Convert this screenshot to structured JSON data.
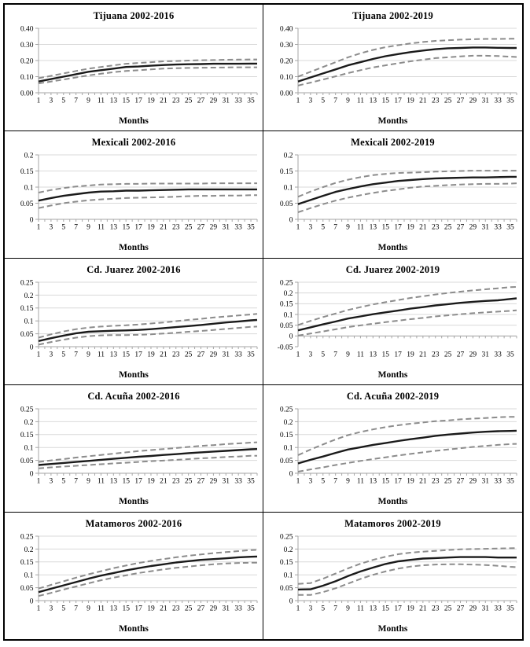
{
  "figure": {
    "background": "#ffffff",
    "frame_border_color": "#000000",
    "gridline_color": "#d9d9d9",
    "axis_color": "#a6a6a6",
    "estimate_color": "#1a1a1a",
    "band_color": "#8c8c8c"
  },
  "axis_shared": {
    "x_months": [
      1,
      3,
      5,
      7,
      9,
      11,
      13,
      15,
      17,
      19,
      21,
      23,
      25,
      27,
      29,
      31,
      33,
      35,
      36
    ],
    "x_labeled": [
      1,
      3,
      5,
      7,
      9,
      11,
      13,
      15,
      17,
      19,
      21,
      23,
      25,
      27,
      29,
      31,
      33,
      35
    ]
  },
  "chart_data": [
    {
      "type": "line",
      "title": "Tijuana 2002-2016",
      "xlabel": "Months",
      "ylim": [
        0,
        0.4
      ],
      "yticks": [
        0,
        0.1,
        0.2,
        0.3,
        0.4
      ],
      "ytick_labels": [
        "0.00",
        "0.10",
        "0.20",
        "0.30",
        "0.40"
      ],
      "series": [
        {
          "name": "estimate",
          "style": "solid",
          "color": "#1a1a1a",
          "values": [
            0.07,
            0.085,
            0.1,
            0.115,
            0.13,
            0.14,
            0.15,
            0.16,
            0.163,
            0.168,
            0.172,
            0.175,
            0.177,
            0.178,
            0.18,
            0.18,
            0.18,
            0.181,
            0.181
          ]
        },
        {
          "name": "upper-bound",
          "style": "dashed",
          "color": "#8c8c8c",
          "values": [
            0.09,
            0.105,
            0.12,
            0.135,
            0.15,
            0.16,
            0.17,
            0.18,
            0.185,
            0.19,
            0.195,
            0.197,
            0.2,
            0.202,
            0.203,
            0.205,
            0.206,
            0.207,
            0.207
          ]
        },
        {
          "name": "lower-bound",
          "style": "dashed",
          "color": "#8c8c8c",
          "values": [
            0.058,
            0.07,
            0.082,
            0.095,
            0.108,
            0.118,
            0.128,
            0.135,
            0.14,
            0.145,
            0.15,
            0.152,
            0.154,
            0.155,
            0.156,
            0.157,
            0.158,
            0.158,
            0.158
          ]
        }
      ]
    },
    {
      "type": "line",
      "title": "Tijuana 2002-2019",
      "xlabel": "Months",
      "ylim": [
        0,
        0.4
      ],
      "yticks": [
        0,
        0.1,
        0.2,
        0.3,
        0.4
      ],
      "ytick_labels": [
        "0.00",
        "0.10",
        "0.20",
        "0.30",
        "0.40"
      ],
      "series": [
        {
          "name": "estimate",
          "style": "solid",
          "color": "#1a1a1a",
          "values": [
            0.07,
            0.095,
            0.12,
            0.145,
            0.17,
            0.19,
            0.21,
            0.227,
            0.24,
            0.252,
            0.262,
            0.27,
            0.276,
            0.278,
            0.281,
            0.281,
            0.279,
            0.278,
            0.278
          ]
        },
        {
          "name": "upper-bound",
          "style": "dashed",
          "color": "#8c8c8c",
          "values": [
            0.1,
            0.13,
            0.16,
            0.19,
            0.22,
            0.245,
            0.266,
            0.283,
            0.295,
            0.306,
            0.315,
            0.322,
            0.326,
            0.33,
            0.332,
            0.334,
            0.334,
            0.335,
            0.335
          ]
        },
        {
          "name": "lower-bound",
          "style": "dashed",
          "color": "#8c8c8c",
          "values": [
            0.045,
            0.063,
            0.082,
            0.102,
            0.122,
            0.14,
            0.157,
            0.17,
            0.183,
            0.195,
            0.205,
            0.215,
            0.22,
            0.226,
            0.23,
            0.23,
            0.228,
            0.224,
            0.222
          ]
        }
      ]
    },
    {
      "type": "line",
      "title": "Mexicali 2002-2016",
      "xlabel": "Months",
      "ylim": [
        0,
        0.2
      ],
      "yticks": [
        0,
        0.05,
        0.1,
        0.15,
        0.2
      ],
      "ytick_labels": [
        "0",
        "0.05",
        "0.1",
        "0.15",
        "0.2"
      ],
      "series": [
        {
          "name": "estimate",
          "style": "solid",
          "color": "#1a1a1a",
          "values": [
            0.058,
            0.066,
            0.073,
            0.078,
            0.083,
            0.086,
            0.087,
            0.089,
            0.089,
            0.09,
            0.091,
            0.092,
            0.093,
            0.093,
            0.093,
            0.093,
            0.093,
            0.093,
            0.093
          ]
        },
        {
          "name": "upper-bound",
          "style": "dashed",
          "color": "#8c8c8c",
          "values": [
            0.083,
            0.091,
            0.097,
            0.102,
            0.105,
            0.108,
            0.109,
            0.11,
            0.11,
            0.111,
            0.111,
            0.111,
            0.111,
            0.111,
            0.112,
            0.112,
            0.112,
            0.112,
            0.112
          ]
        },
        {
          "name": "lower-bound",
          "style": "dashed",
          "color": "#8c8c8c",
          "values": [
            0.035,
            0.043,
            0.05,
            0.055,
            0.059,
            0.062,
            0.064,
            0.066,
            0.067,
            0.068,
            0.069,
            0.07,
            0.072,
            0.073,
            0.073,
            0.074,
            0.074,
            0.075,
            0.075
          ]
        }
      ]
    },
    {
      "type": "line",
      "title": "Mexicali 2002-2019",
      "xlabel": "Months",
      "ylim": [
        0,
        0.2
      ],
      "yticks": [
        0,
        0.05,
        0.1,
        0.15,
        0.2
      ],
      "ytick_labels": [
        "0",
        "0.05",
        "0.1",
        "0.15",
        "0.2"
      ],
      "series": [
        {
          "name": "estimate",
          "style": "solid",
          "color": "#1a1a1a",
          "values": [
            0.047,
            0.06,
            0.073,
            0.085,
            0.094,
            0.102,
            0.109,
            0.114,
            0.119,
            0.122,
            0.125,
            0.127,
            0.128,
            0.129,
            0.13,
            0.13,
            0.131,
            0.132,
            0.132
          ]
        },
        {
          "name": "upper-bound",
          "style": "dashed",
          "color": "#8c8c8c",
          "values": [
            0.07,
            0.086,
            0.1,
            0.113,
            0.123,
            0.131,
            0.137,
            0.141,
            0.144,
            0.145,
            0.146,
            0.148,
            0.149,
            0.15,
            0.151,
            0.151,
            0.151,
            0.151,
            0.151
          ]
        },
        {
          "name": "lower-bound",
          "style": "dashed",
          "color": "#8c8c8c",
          "values": [
            0.022,
            0.035,
            0.047,
            0.058,
            0.067,
            0.075,
            0.082,
            0.088,
            0.093,
            0.098,
            0.102,
            0.104,
            0.106,
            0.108,
            0.109,
            0.11,
            0.11,
            0.111,
            0.112
          ]
        }
      ]
    },
    {
      "type": "line",
      "title": "Cd. Juarez 2002-2016",
      "xlabel": "Months",
      "ylim": [
        0,
        0.25
      ],
      "yticks": [
        0,
        0.05,
        0.1,
        0.15,
        0.2,
        0.25
      ],
      "ytick_labels": [
        "0",
        "0.05",
        "0.1",
        "0.15",
        "0.2",
        "0.25"
      ],
      "series": [
        {
          "name": "estimate",
          "style": "solid",
          "color": "#1a1a1a",
          "values": [
            0.022,
            0.033,
            0.043,
            0.052,
            0.058,
            0.06,
            0.062,
            0.063,
            0.065,
            0.068,
            0.072,
            0.076,
            0.08,
            0.084,
            0.089,
            0.094,
            0.098,
            0.102,
            0.104
          ]
        },
        {
          "name": "upper-bound",
          "style": "dashed",
          "color": "#8c8c8c",
          "values": [
            0.035,
            0.048,
            0.059,
            0.068,
            0.074,
            0.078,
            0.081,
            0.083,
            0.086,
            0.09,
            0.094,
            0.099,
            0.104,
            0.108,
            0.113,
            0.117,
            0.121,
            0.125,
            0.127
          ]
        },
        {
          "name": "lower-bound",
          "style": "dashed",
          "color": "#8c8c8c",
          "values": [
            0.008,
            0.018,
            0.027,
            0.035,
            0.041,
            0.044,
            0.045,
            0.045,
            0.046,
            0.048,
            0.051,
            0.054,
            0.058,
            0.061,
            0.065,
            0.069,
            0.073,
            0.077,
            0.078
          ]
        }
      ]
    },
    {
      "type": "line",
      "title": "Cd. Juarez 2002-2019",
      "xlabel": "Months",
      "ylim": [
        -0.05,
        0.25
      ],
      "yticks": [
        -0.05,
        0,
        0.05,
        0.1,
        0.15,
        0.2,
        0.25
      ],
      "ytick_labels": [
        "-0.05",
        "0",
        "0.05",
        "0.1",
        "0.15",
        "0.2",
        "0.25"
      ],
      "series": [
        {
          "name": "estimate",
          "style": "solid",
          "color": "#1a1a1a",
          "values": [
            0.026,
            0.04,
            0.054,
            0.067,
            0.081,
            0.091,
            0.101,
            0.11,
            0.118,
            0.127,
            0.134,
            0.142,
            0.148,
            0.154,
            0.159,
            0.163,
            0.166,
            0.172,
            0.175
          ]
        },
        {
          "name": "upper-bound",
          "style": "dashed",
          "color": "#8c8c8c",
          "values": [
            0.051,
            0.07,
            0.088,
            0.104,
            0.121,
            0.134,
            0.147,
            0.157,
            0.167,
            0.177,
            0.185,
            0.193,
            0.2,
            0.206,
            0.212,
            0.217,
            0.222,
            0.227,
            0.228
          ]
        },
        {
          "name": "lower-bound",
          "style": "dashed",
          "color": "#8c8c8c",
          "values": [
            0.002,
            0.011,
            0.021,
            0.031,
            0.041,
            0.049,
            0.057,
            0.064,
            0.071,
            0.078,
            0.084,
            0.091,
            0.096,
            0.101,
            0.106,
            0.11,
            0.113,
            0.117,
            0.119
          ]
        }
      ]
    },
    {
      "type": "line",
      "title": "Cd. Acuña 2002-2016",
      "xlabel": "Months",
      "ylim": [
        0,
        0.25
      ],
      "yticks": [
        0,
        0.05,
        0.1,
        0.15,
        0.2,
        0.25
      ],
      "ytick_labels": [
        "0",
        "0.05",
        "0.1",
        "0.15",
        "0.2",
        "0.25"
      ],
      "series": [
        {
          "name": "estimate",
          "style": "solid",
          "color": "#1a1a1a",
          "values": [
            0.032,
            0.036,
            0.04,
            0.044,
            0.048,
            0.052,
            0.056,
            0.06,
            0.064,
            0.067,
            0.071,
            0.074,
            0.078,
            0.081,
            0.084,
            0.087,
            0.09,
            0.093,
            0.094
          ]
        },
        {
          "name": "upper-bound",
          "style": "dashed",
          "color": "#8c8c8c",
          "values": [
            0.044,
            0.05,
            0.055,
            0.061,
            0.066,
            0.071,
            0.076,
            0.081,
            0.086,
            0.09,
            0.094,
            0.098,
            0.102,
            0.106,
            0.109,
            0.113,
            0.116,
            0.119,
            0.12
          ]
        },
        {
          "name": "lower-bound",
          "style": "dashed",
          "color": "#8c8c8c",
          "values": [
            0.019,
            0.023,
            0.026,
            0.029,
            0.032,
            0.035,
            0.038,
            0.041,
            0.044,
            0.047,
            0.049,
            0.052,
            0.055,
            0.058,
            0.06,
            0.063,
            0.065,
            0.068,
            0.068
          ]
        }
      ]
    },
    {
      "type": "line",
      "title": "Cd. Acuña 2002-2019",
      "xlabel": "Months",
      "ylim": [
        0,
        0.25
      ],
      "yticks": [
        0,
        0.05,
        0.1,
        0.15,
        0.2,
        0.25
      ],
      "ytick_labels": [
        "0",
        "0.05",
        "0.1",
        "0.15",
        "0.2",
        "0.25"
      ],
      "series": [
        {
          "name": "estimate",
          "style": "solid",
          "color": "#1a1a1a",
          "values": [
            0.038,
            0.052,
            0.065,
            0.079,
            0.092,
            0.101,
            0.11,
            0.117,
            0.125,
            0.132,
            0.138,
            0.145,
            0.15,
            0.154,
            0.158,
            0.161,
            0.163,
            0.164,
            0.165
          ]
        },
        {
          "name": "upper-bound",
          "style": "dashed",
          "color": "#8c8c8c",
          "values": [
            0.07,
            0.092,
            0.112,
            0.131,
            0.148,
            0.16,
            0.17,
            0.179,
            0.186,
            0.192,
            0.197,
            0.202,
            0.205,
            0.209,
            0.212,
            0.214,
            0.217,
            0.219,
            0.219
          ]
        },
        {
          "name": "lower-bound",
          "style": "dashed",
          "color": "#8c8c8c",
          "values": [
            0.006,
            0.015,
            0.023,
            0.032,
            0.04,
            0.048,
            0.055,
            0.062,
            0.069,
            0.075,
            0.081,
            0.087,
            0.092,
            0.097,
            0.102,
            0.106,
            0.11,
            0.113,
            0.114
          ]
        }
      ]
    },
    {
      "type": "line",
      "title": "Matamoros 2002-2016",
      "xlabel": "Months",
      "ylim": [
        0,
        0.25
      ],
      "yticks": [
        0,
        0.05,
        0.1,
        0.15,
        0.2,
        0.25
      ],
      "ytick_labels": [
        "0",
        "0.05",
        "0.1",
        "0.15",
        "0.2",
        "0.25"
      ],
      "series": [
        {
          "name": "estimate",
          "style": "solid",
          "color": "#1a1a1a",
          "values": [
            0.033,
            0.046,
            0.059,
            0.072,
            0.085,
            0.097,
            0.107,
            0.117,
            0.126,
            0.134,
            0.141,
            0.148,
            0.153,
            0.158,
            0.161,
            0.164,
            0.168,
            0.17,
            0.171
          ]
        },
        {
          "name": "upper-bound",
          "style": "dashed",
          "color": "#8c8c8c",
          "values": [
            0.047,
            0.061,
            0.075,
            0.089,
            0.102,
            0.114,
            0.126,
            0.136,
            0.146,
            0.154,
            0.161,
            0.168,
            0.174,
            0.179,
            0.184,
            0.188,
            0.192,
            0.196,
            0.197
          ]
        },
        {
          "name": "lower-bound",
          "style": "dashed",
          "color": "#8c8c8c",
          "values": [
            0.018,
            0.03,
            0.043,
            0.055,
            0.067,
            0.079,
            0.089,
            0.098,
            0.107,
            0.114,
            0.121,
            0.127,
            0.132,
            0.137,
            0.141,
            0.144,
            0.146,
            0.147,
            0.147
          ]
        }
      ]
    },
    {
      "type": "line",
      "title": "Matamoros 2002-2019",
      "xlabel": "Months",
      "ylim": [
        0,
        0.25
      ],
      "yticks": [
        0,
        0.05,
        0.1,
        0.15,
        0.2,
        0.25
      ],
      "ytick_labels": [
        "0",
        "0.05",
        "0.1",
        "0.15",
        "0.2",
        "0.25"
      ],
      "series": [
        {
          "name": "estimate",
          "style": "solid",
          "color": "#1a1a1a",
          "values": [
            0.043,
            0.044,
            0.058,
            0.075,
            0.095,
            0.113,
            0.128,
            0.142,
            0.152,
            0.158,
            0.163,
            0.165,
            0.167,
            0.169,
            0.169,
            0.169,
            0.167,
            0.167,
            0.167
          ]
        },
        {
          "name": "upper-bound",
          "style": "dashed",
          "color": "#8c8c8c",
          "values": [
            0.065,
            0.068,
            0.085,
            0.105,
            0.125,
            0.143,
            0.158,
            0.17,
            0.18,
            0.186,
            0.19,
            0.193,
            0.196,
            0.199,
            0.2,
            0.201,
            0.202,
            0.203,
            0.204
          ]
        },
        {
          "name": "lower-bound",
          "style": "dashed",
          "color": "#8c8c8c",
          "values": [
            0.022,
            0.022,
            0.033,
            0.048,
            0.066,
            0.084,
            0.1,
            0.113,
            0.124,
            0.132,
            0.137,
            0.14,
            0.141,
            0.141,
            0.14,
            0.138,
            0.135,
            0.131,
            0.13
          ]
        }
      ]
    }
  ]
}
